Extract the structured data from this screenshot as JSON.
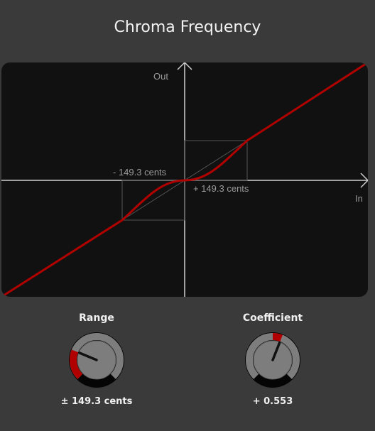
{
  "title": "Chroma Frequency",
  "graph": {
    "out_label": "Out",
    "in_label": "In",
    "neg_label": "- 149.3 cents",
    "pos_label": "+ 149.3 cents",
    "curve_color": "#b00000"
  },
  "knobs": [
    {
      "title": "Range",
      "value_text": "± 149.3 cents",
      "fraction": 0.25
    },
    {
      "title": "Coefficient",
      "value_text": "+ 0.553",
      "fraction": 0.58
    }
  ]
}
